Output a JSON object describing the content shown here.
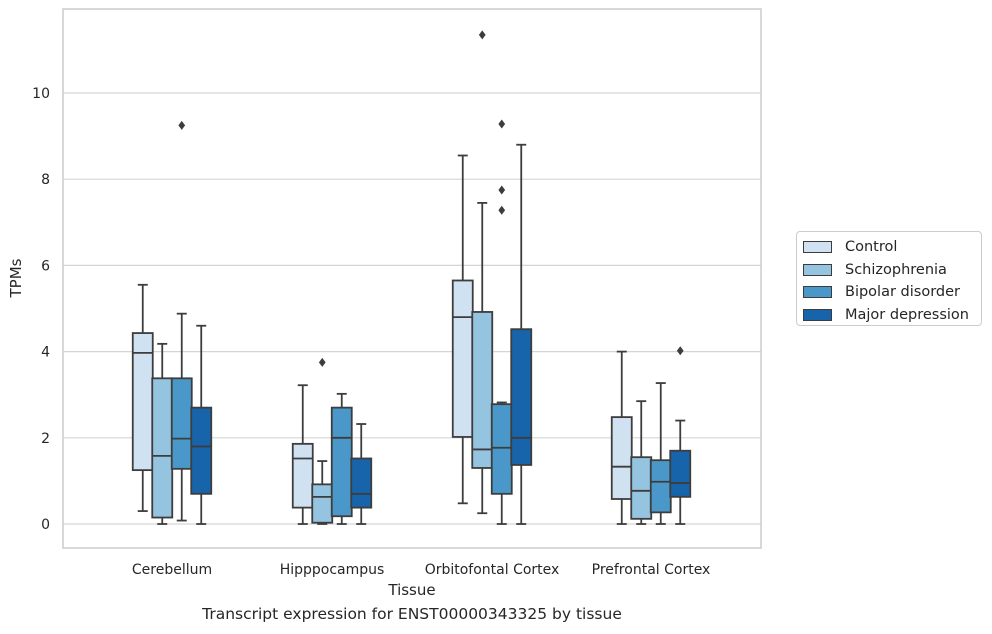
{
  "chart_data": {
    "type": "box",
    "title": "Transcript expression for ENST00000343325 by tissue",
    "xlabel": "Tissue",
    "ylabel": "TPMs",
    "ylim": [
      -0.55,
      12.0
    ],
    "yticks": [
      0,
      2,
      4,
      6,
      8,
      10
    ],
    "grid": true,
    "legend_position": "right",
    "categories": [
      "Cerebellum",
      "Hipppocampus",
      "Orbitofontal Cortex",
      "Prefrontal Cortex"
    ],
    "series": [
      {
        "name": "Control",
        "color": "#d0e1f2",
        "boxes": [
          {
            "whisker_low": 0.3,
            "q1": 1.25,
            "median": 3.97,
            "q3": 4.43,
            "whisker_high": 5.55,
            "outliers": []
          },
          {
            "whisker_low": 0.0,
            "q1": 0.38,
            "median": 1.52,
            "q3": 1.86,
            "whisker_high": 3.22,
            "outliers": []
          },
          {
            "whisker_low": 0.48,
            "q1": 2.02,
            "median": 4.8,
            "q3": 5.65,
            "whisker_high": 8.55,
            "outliers": []
          },
          {
            "whisker_low": 0.0,
            "q1": 0.58,
            "median": 1.33,
            "q3": 2.48,
            "whisker_high": 4.0,
            "outliers": []
          }
        ]
      },
      {
        "name": "Schizophrenia",
        "color": "#94c4df",
        "boxes": [
          {
            "whisker_low": 0.0,
            "q1": 0.15,
            "median": 1.58,
            "q3": 3.38,
            "whisker_high": 4.18,
            "outliers": []
          },
          {
            "whisker_low": 0.0,
            "q1": 0.03,
            "median": 0.63,
            "q3": 0.92,
            "whisker_high": 1.46,
            "outliers": [
              3.75
            ]
          },
          {
            "whisker_low": 0.25,
            "q1": 1.3,
            "median": 1.73,
            "q3": 4.92,
            "whisker_high": 7.45,
            "outliers": [
              11.35
            ]
          },
          {
            "whisker_low": 0.0,
            "q1": 0.12,
            "median": 0.77,
            "q3": 1.55,
            "whisker_high": 2.85,
            "outliers": []
          }
        ]
      },
      {
        "name": "Bipolar disorder",
        "color": "#4a98c9",
        "boxes": [
          {
            "whisker_low": 0.08,
            "q1": 1.28,
            "median": 1.98,
            "q3": 3.38,
            "whisker_high": 4.88,
            "outliers": [
              9.25
            ]
          },
          {
            "whisker_low": 0.0,
            "q1": 0.18,
            "median": 2.0,
            "q3": 2.7,
            "whisker_high": 3.02,
            "outliers": []
          },
          {
            "whisker_low": 0.0,
            "q1": 0.7,
            "median": 1.77,
            "q3": 2.78,
            "whisker_high": 2.82,
            "outliers": [
              7.28,
              7.75,
              9.28
            ]
          },
          {
            "whisker_low": 0.0,
            "q1": 0.27,
            "median": 0.98,
            "q3": 1.48,
            "whisker_high": 3.27,
            "outliers": []
          }
        ]
      },
      {
        "name": "Major depression",
        "color": "#1764ab",
        "boxes": [
          {
            "whisker_low": 0.0,
            "q1": 0.7,
            "median": 1.8,
            "q3": 2.7,
            "whisker_high": 4.6,
            "outliers": []
          },
          {
            "whisker_low": 0.0,
            "q1": 0.38,
            "median": 0.7,
            "q3": 1.52,
            "whisker_high": 2.32,
            "outliers": []
          },
          {
            "whisker_low": 0.0,
            "q1": 1.37,
            "median": 2.0,
            "q3": 4.52,
            "whisker_high": 8.8,
            "outliers": []
          },
          {
            "whisker_low": 0.0,
            "q1": 0.63,
            "median": 0.95,
            "q3": 1.7,
            "whisker_high": 2.4,
            "outliers": [
              4.02
            ]
          }
        ]
      }
    ]
  }
}
